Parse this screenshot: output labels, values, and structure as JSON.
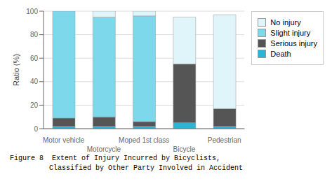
{
  "chart_data": {
    "type": "bar",
    "stacked": true,
    "categories": [
      "Motor vehicle",
      "Motorcycle",
      "Moped 1st class",
      "Bicycle",
      "Pedestrian"
    ],
    "series": [
      {
        "name": "Death",
        "color": "#2AB4D6",
        "values": [
          2,
          2,
          2,
          5,
          2
        ]
      },
      {
        "name": "Serious injury",
        "color": "#555555",
        "values": [
          7,
          8,
          4,
          50,
          15
        ]
      },
      {
        "name": "Slight injury",
        "color": "#7DD8EC",
        "values": [
          91,
          85,
          90,
          0,
          0
        ]
      },
      {
        "name": "No injury",
        "color": "#E0F5FA",
        "values": [
          0,
          5,
          4,
          40,
          80
        ]
      }
    ],
    "y_label": "Ratio (%)",
    "ylim": [
      0,
      100
    ],
    "yticks": [
      0,
      20,
      40,
      60,
      80,
      100
    ],
    "grid": true,
    "legend": "right",
    "annotations": [
      "Figure 8  Extent of Injury Incurred by Bicyclists,",
      "Classified by Other Party Involved in Accident"
    ]
  }
}
